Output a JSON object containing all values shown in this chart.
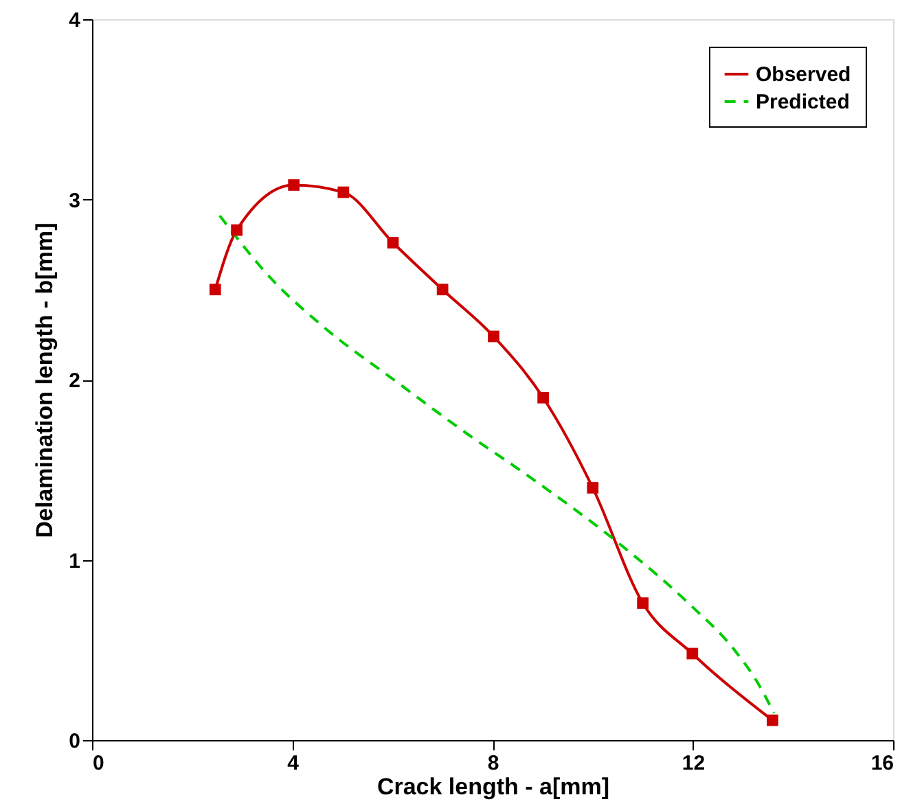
{
  "chart_data": {
    "type": "line",
    "xlabel": "Crack length - a[mm]",
    "ylabel": "Delamination length - b[mm]",
    "xlim": [
      0,
      16
    ],
    "xticks": [
      0,
      4,
      8,
      12,
      16
    ],
    "ylim": [
      0,
      4
    ],
    "yticks": [
      0,
      1,
      2,
      3,
      4
    ],
    "grid": false,
    "legend": "top right",
    "series": [
      {
        "name": "Observed",
        "color": "#cc0000",
        "marker": "square",
        "line_style": "solid",
        "x": [
          2.46,
          2.89,
          4.03,
          5.02,
          6.01,
          7.0,
          8.02,
          9.01,
          10.0,
          11.0,
          11.99,
          13.59
        ],
        "values": [
          2.5,
          2.83,
          3.08,
          3.04,
          2.76,
          2.5,
          2.24,
          1.9,
          1.4,
          0.76,
          0.48,
          0.11
        ]
      },
      {
        "name": "Predicted",
        "color": "#00cc00",
        "marker": "none",
        "line_style": "dashed",
        "x": [
          2.55,
          3.58,
          4.55,
          6.12,
          7.49,
          8.69,
          10.44,
          11.91,
          12.83,
          13.29,
          13.62
        ],
        "values": [
          2.91,
          2.56,
          2.31,
          1.98,
          1.7,
          1.47,
          1.11,
          0.76,
          0.5,
          0.32,
          0.15
        ]
      }
    ]
  }
}
